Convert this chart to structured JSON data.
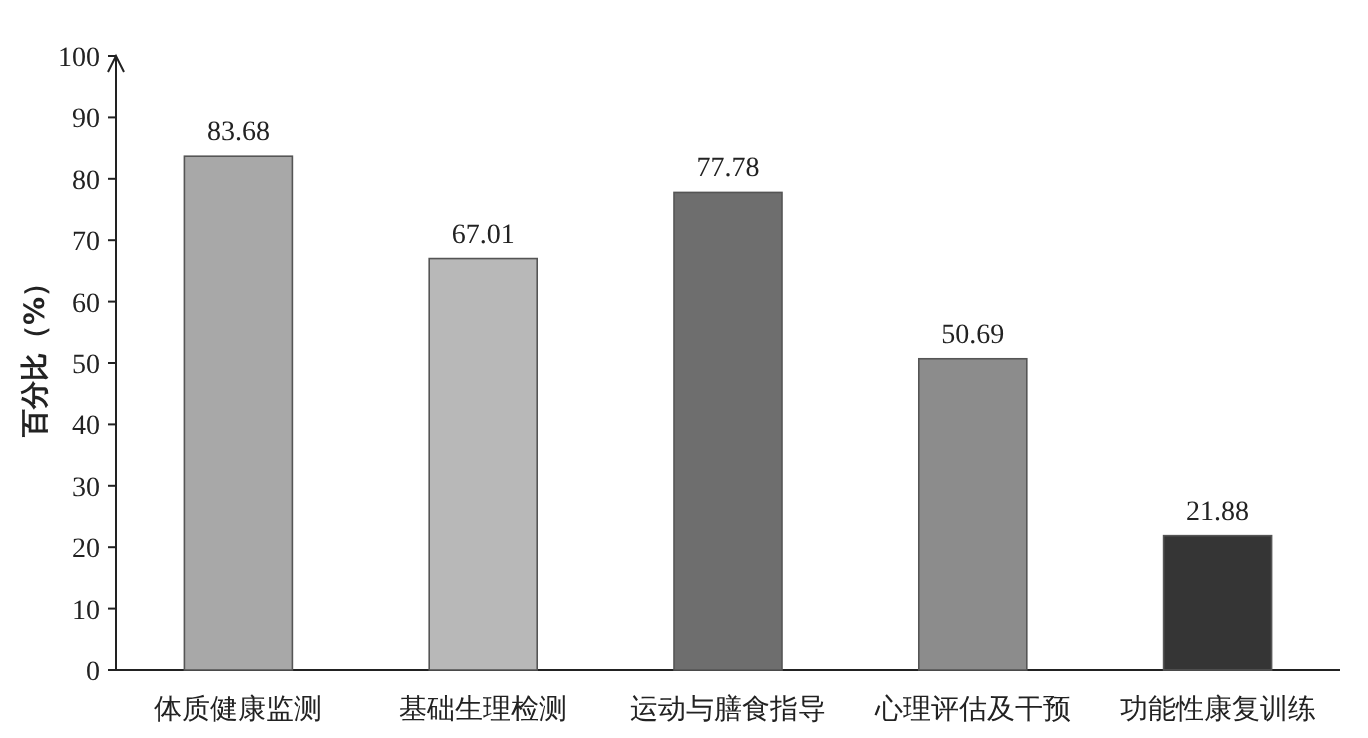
{
  "chart_data": {
    "type": "bar",
    "ylabel": "百分比（%）",
    "categories": [
      "体质健康监测",
      "基础生理检测",
      "运动与膳食指导",
      "心理评估及干预",
      "功能性康复训练"
    ],
    "values": [
      83.68,
      67.01,
      77.78,
      50.69,
      21.88
    ],
    "colors": [
      "#a8a8a8",
      "#b8b8b8",
      "#6e6e6e",
      "#8c8c8c",
      "#353535"
    ],
    "ylim": [
      0,
      100
    ],
    "yticks": [
      0,
      10,
      20,
      30,
      40,
      50,
      60,
      70,
      80,
      90,
      100
    ],
    "data_labels": true
  }
}
